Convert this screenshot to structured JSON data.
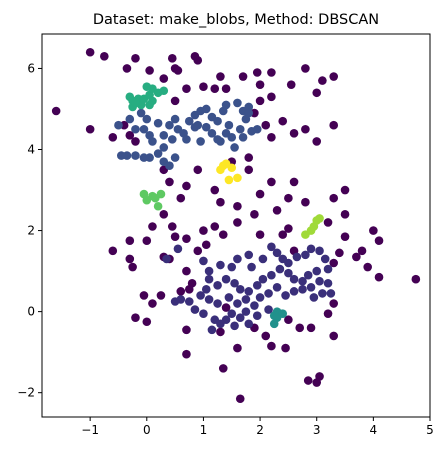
{
  "chart_data": {
    "type": "scatter",
    "title": "Dataset: make_blobs, Method: DBSCAN",
    "xlabel": "",
    "ylabel": "",
    "xlim": [
      -1.85,
      5.0
    ],
    "ylim": [
      -2.6,
      6.85
    ],
    "xticks": [
      -1,
      0,
      1,
      2,
      3,
      4,
      5
    ],
    "yticks": [
      -2,
      0,
      2,
      4,
      6
    ],
    "xtick_labels": [
      "−1",
      "0",
      "1",
      "2",
      "3",
      "4",
      "5"
    ],
    "ytick_labels": [
      "−2",
      "0",
      "2",
      "4",
      "6"
    ],
    "grid": false,
    "legend": "none",
    "series": [
      {
        "color": "#440154",
        "points": [
          [
            -1.0,
            6.4
          ],
          [
            -0.75,
            6.3
          ],
          [
            -0.2,
            6.25
          ],
          [
            0.45,
            6.25
          ],
          [
            0.5,
            6.0
          ],
          [
            0.55,
            5.95
          ],
          [
            0.85,
            6.3
          ],
          [
            0.9,
            6.2
          ],
          [
            -0.35,
            6.0
          ],
          [
            0.05,
            5.95
          ],
          [
            0.3,
            5.75
          ],
          [
            1.2,
            5.5
          ],
          [
            1.3,
            5.8
          ],
          [
            1.7,
            5.8
          ],
          [
            1.95,
            5.9
          ],
          [
            2.0,
            5.6
          ],
          [
            2.2,
            5.9
          ],
          [
            2.55,
            5.6
          ],
          [
            2.8,
            6.0
          ],
          [
            3.1,
            5.7
          ],
          [
            3.3,
            5.8
          ],
          [
            3.0,
            5.4
          ],
          [
            2.2,
            5.3
          ],
          [
            2.0,
            5.2
          ],
          [
            1.9,
            4.9
          ],
          [
            2.1,
            4.6
          ],
          [
            2.4,
            4.7
          ],
          [
            2.6,
            4.4
          ],
          [
            2.8,
            4.5
          ],
          [
            3.0,
            4.2
          ],
          [
            3.3,
            4.6
          ],
          [
            2.2,
            4.3
          ],
          [
            1.4,
            5.5
          ],
          [
            1.0,
            5.55
          ],
          [
            0.7,
            5.5
          ],
          [
            0.5,
            5.2
          ],
          [
            -1.6,
            4.95
          ],
          [
            -1.0,
            4.5
          ],
          [
            -0.6,
            4.3
          ],
          [
            -0.4,
            4.6
          ],
          [
            -0.2,
            4.2
          ],
          [
            -0.3,
            4.35
          ],
          [
            0.3,
            3.5
          ],
          [
            0.4,
            3.2
          ],
          [
            0.7,
            3.1
          ],
          [
            0.9,
            3.5
          ],
          [
            1.2,
            3.0
          ],
          [
            1.5,
            3.7
          ],
          [
            1.8,
            3.5
          ],
          [
            1.8,
            3.8
          ],
          [
            2.2,
            3.2
          ],
          [
            2.6,
            3.2
          ],
          [
            2.0,
            2.9
          ],
          [
            1.6,
            2.6
          ],
          [
            1.3,
            2.7
          ],
          [
            0.6,
            2.8
          ],
          [
            0.3,
            2.4
          ],
          [
            0.1,
            2.1
          ],
          [
            0.45,
            2.1
          ],
          [
            0.7,
            1.8
          ],
          [
            1.0,
            2.0
          ],
          [
            1.2,
            2.1
          ],
          [
            1.6,
            2.2
          ],
          [
            1.9,
            2.4
          ],
          [
            2.3,
            2.5
          ],
          [
            2.5,
            2.8
          ],
          [
            2.8,
            2.7
          ],
          [
            3.3,
            2.8
          ],
          [
            3.5,
            3.0
          ],
          [
            3.5,
            2.4
          ],
          [
            2.5,
            2.05
          ],
          [
            3.2,
            2.2
          ],
          [
            3.5,
            1.85
          ],
          [
            4.0,
            2.0
          ],
          [
            4.1,
            1.75
          ],
          [
            3.8,
            1.5
          ],
          [
            3.7,
            1.35
          ],
          [
            3.9,
            1.1
          ],
          [
            4.1,
            0.85
          ],
          [
            4.75,
            0.8
          ],
          [
            3.3,
            1.2
          ],
          [
            3.4,
            1.45
          ],
          [
            2.6,
            1.5
          ],
          [
            2.4,
            1.9
          ],
          [
            2.0,
            1.9
          ],
          [
            1.35,
            1.9
          ],
          [
            1.05,
            1.65
          ],
          [
            0.9,
            1.5
          ],
          [
            0.5,
            1.85
          ],
          [
            0.0,
            1.75
          ],
          [
            -0.6,
            1.5
          ],
          [
            -0.3,
            1.75
          ],
          [
            -0.3,
            1.3
          ],
          [
            -0.25,
            1.1
          ],
          [
            0.3,
            1.35
          ],
          [
            0.4,
            1.3
          ],
          [
            0.7,
            1.0
          ],
          [
            0.8,
            0.7
          ],
          [
            -0.05,
            0.4
          ],
          [
            0.1,
            0.2
          ],
          [
            -0.2,
            -0.15
          ],
          [
            0.0,
            -0.25
          ],
          [
            0.25,
            0.4
          ],
          [
            0.6,
            0.5
          ],
          [
            0.75,
            0.55
          ],
          [
            0.7,
            -0.45
          ],
          [
            0.7,
            -1.05
          ],
          [
            1.3,
            -0.5
          ],
          [
            1.6,
            -0.9
          ],
          [
            1.4,
            0.1
          ],
          [
            2.1,
            -0.6
          ],
          [
            2.2,
            -0.85
          ],
          [
            2.45,
            -0.9
          ],
          [
            2.5,
            -0.2
          ],
          [
            2.7,
            -0.4
          ],
          [
            2.9,
            -0.4
          ],
          [
            3.2,
            -0.05
          ],
          [
            3.3,
            0.2
          ],
          [
            3.3,
            -0.6
          ],
          [
            2.85,
            -1.7
          ],
          [
            3.0,
            -1.75
          ],
          [
            3.05,
            -1.6
          ],
          [
            1.65,
            -2.15
          ],
          [
            1.35,
            -1.4
          ],
          [
            1.9,
            -0.4
          ]
        ]
      },
      {
        "color": "#3b528b",
        "points": [
          [
            -0.3,
            4.75
          ],
          [
            -0.5,
            4.6
          ],
          [
            -0.2,
            4.5
          ],
          [
            -0.1,
            4.9
          ],
          [
            0.0,
            4.75
          ],
          [
            0.2,
            4.65
          ],
          [
            0.4,
            4.6
          ],
          [
            0.5,
            4.75
          ],
          [
            0.55,
            4.5
          ],
          [
            0.65,
            4.4
          ],
          [
            0.75,
            4.7
          ],
          [
            0.85,
            4.85
          ],
          [
            0.95,
            4.95
          ],
          [
            1.05,
            5.0
          ],
          [
            1.15,
            4.8
          ],
          [
            1.25,
            4.7
          ],
          [
            1.35,
            4.95
          ],
          [
            1.4,
            5.1
          ],
          [
            1.6,
            5.15
          ],
          [
            1.7,
            4.95
          ],
          [
            1.75,
            4.75
          ],
          [
            1.8,
            5.05
          ],
          [
            1.65,
            4.5
          ],
          [
            1.4,
            4.4
          ],
          [
            1.5,
            4.3
          ],
          [
            1.7,
            4.3
          ],
          [
            1.85,
            4.45
          ],
          [
            1.95,
            4.5
          ],
          [
            1.3,
            4.2
          ],
          [
            1.05,
            4.55
          ],
          [
            0.9,
            4.6
          ],
          [
            0.7,
            4.25
          ],
          [
            0.45,
            4.25
          ],
          [
            0.3,
            4.05
          ],
          [
            0.1,
            4.2
          ],
          [
            0.2,
            3.9
          ],
          [
            0.05,
            3.8
          ],
          [
            -0.05,
            3.8
          ],
          [
            -0.2,
            3.85
          ],
          [
            -0.35,
            3.85
          ],
          [
            -0.45,
            3.85
          ],
          [
            0.3,
            3.7
          ],
          [
            0.4,
            3.6
          ],
          [
            0.5,
            3.8
          ],
          [
            0.05,
            4.35
          ],
          [
            0.95,
            4.2
          ],
          [
            1.15,
            4.4
          ],
          [
            1.55,
            4.05
          ],
          [
            1.8,
            4.9
          ],
          [
            -0.05,
            4.5
          ],
          [
            0.3,
            4.35
          ],
          [
            0.85,
            4.55
          ],
          [
            1.45,
            4.6
          ],
          [
            1.25,
            4.25
          ]
        ]
      },
      {
        "color": "#3a2f7a",
        "points": [
          [
            1.0,
            1.25
          ],
          [
            1.1,
            1.0
          ],
          [
            1.3,
            1.15
          ],
          [
            1.5,
            1.1
          ],
          [
            1.6,
            1.3
          ],
          [
            1.8,
            1.4
          ],
          [
            1.85,
            1.1
          ],
          [
            2.05,
            1.3
          ],
          [
            2.2,
            1.6
          ],
          [
            2.3,
            1.45
          ],
          [
            2.4,
            1.3
          ],
          [
            2.5,
            1.2
          ],
          [
            2.65,
            1.35
          ],
          [
            2.8,
            1.4
          ],
          [
            2.9,
            1.55
          ],
          [
            3.05,
            1.5
          ],
          [
            3.15,
            1.3
          ],
          [
            3.2,
            1.05
          ],
          [
            3.0,
            1.0
          ],
          [
            2.85,
            0.9
          ],
          [
            2.75,
            0.75
          ],
          [
            2.6,
            0.8
          ],
          [
            2.5,
            0.95
          ],
          [
            2.35,
            1.05
          ],
          [
            2.2,
            0.9
          ],
          [
            2.05,
            0.8
          ],
          [
            1.95,
            0.65
          ],
          [
            1.8,
            0.5
          ],
          [
            1.65,
            0.55
          ],
          [
            1.55,
            0.7
          ],
          [
            1.4,
            0.8
          ],
          [
            1.25,
            0.65
          ],
          [
            1.1,
            0.8
          ],
          [
            1.05,
            0.55
          ],
          [
            0.95,
            0.4
          ],
          [
            1.1,
            0.3
          ],
          [
            1.25,
            0.2
          ],
          [
            1.45,
            0.35
          ],
          [
            1.6,
            0.2
          ],
          [
            1.75,
            0.3
          ],
          [
            1.9,
            0.15
          ],
          [
            2.0,
            0.35
          ],
          [
            2.15,
            0.45
          ],
          [
            2.3,
            0.6
          ],
          [
            2.45,
            0.4
          ],
          [
            2.6,
            0.5
          ],
          [
            2.75,
            0.55
          ],
          [
            2.9,
            0.6
          ],
          [
            3.05,
            0.75
          ],
          [
            3.2,
            0.7
          ],
          [
            3.25,
            0.45
          ],
          [
            3.1,
            0.45
          ],
          [
            2.95,
            0.35
          ],
          [
            1.75,
            0.0
          ],
          [
            1.65,
            -0.15
          ],
          [
            1.5,
            -0.05
          ],
          [
            1.4,
            -0.2
          ],
          [
            1.3,
            -0.3
          ],
          [
            1.2,
            -0.2
          ],
          [
            1.0,
            -0.05
          ],
          [
            0.85,
            0.05
          ],
          [
            0.75,
            0.25
          ],
          [
            0.6,
            0.3
          ],
          [
            0.5,
            0.25
          ],
          [
            1.15,
            -0.45
          ],
          [
            1.55,
            -0.35
          ],
          [
            1.8,
            -0.3
          ],
          [
            1.95,
            -0.1
          ],
          [
            2.15,
            0.05
          ],
          [
            0.55,
            1.55
          ],
          [
            0.35,
            1.3
          ]
        ]
      },
      {
        "color": "#21918c",
        "points": [
          [
            2.3,
            0.0
          ],
          [
            2.35,
            -0.05
          ],
          [
            2.25,
            -0.1
          ],
          [
            2.4,
            -0.05
          ],
          [
            2.3,
            -0.15
          ],
          [
            2.25,
            -0.3
          ]
        ]
      },
      {
        "color": "#27ad81",
        "points": [
          [
            -0.3,
            5.3
          ],
          [
            -0.25,
            5.2
          ],
          [
            -0.15,
            5.25
          ],
          [
            -0.1,
            5.1
          ],
          [
            -0.25,
            5.05
          ],
          [
            -0.2,
            5.15
          ],
          [
            -0.05,
            5.25
          ],
          [
            0.05,
            5.35
          ],
          [
            0.1,
            5.5
          ],
          [
            0.0,
            5.55
          ],
          [
            0.2,
            5.4
          ],
          [
            0.3,
            5.45
          ],
          [
            0.1,
            5.2
          ],
          [
            0.05,
            5.1
          ]
        ]
      },
      {
        "color": "#5ec962",
        "points": [
          [
            -0.05,
            2.9
          ],
          [
            0.0,
            2.75
          ],
          [
            0.15,
            2.8
          ],
          [
            0.25,
            2.9
          ],
          [
            0.2,
            2.6
          ],
          [
            0.1,
            2.85
          ]
        ]
      },
      {
        "color": "#a0da39",
        "points": [
          [
            2.8,
            1.9
          ],
          [
            2.9,
            2.0
          ],
          [
            3.0,
            2.25
          ],
          [
            3.05,
            2.3
          ],
          [
            2.95,
            2.1
          ]
        ]
      },
      {
        "color": "#fde725",
        "points": [
          [
            1.3,
            3.5
          ],
          [
            1.35,
            3.6
          ],
          [
            1.4,
            3.65
          ],
          [
            1.45,
            3.25
          ],
          [
            1.5,
            3.55
          ],
          [
            1.6,
            3.3
          ]
        ]
      }
    ]
  }
}
